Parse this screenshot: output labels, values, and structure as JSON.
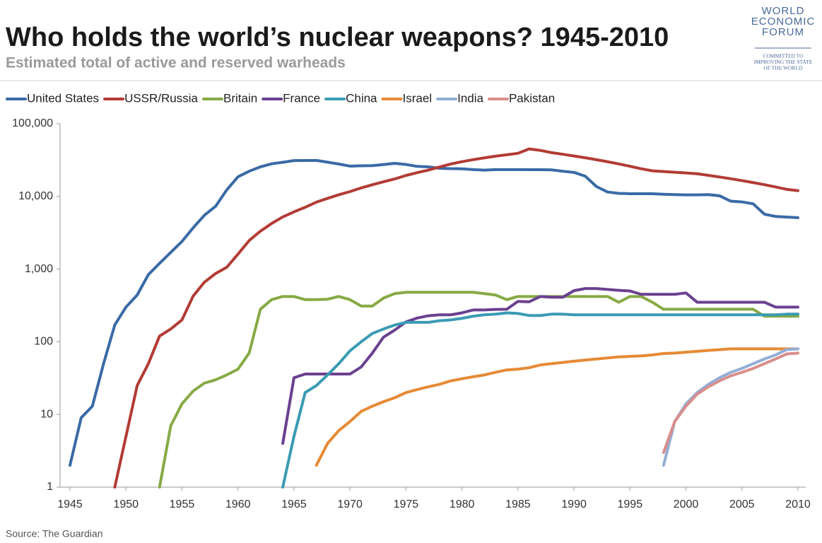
{
  "chart_data": {
    "type": "line",
    "title": "Who holds the world’s nuclear weapons? 1945-2010",
    "subtitle": "Estimated total of active and reserved warheads",
    "source": "Source: The Guardian",
    "logo": {
      "lines": [
        "WORLD",
        "ECONOMIC",
        "FORUM"
      ],
      "tagline": [
        "COMMITTED TO",
        "IMPROVING THE STATE",
        "OF THE WORLD"
      ]
    },
    "log_scale": true,
    "grid": false,
    "legend": "top",
    "xlim": [
      1945,
      2010
    ],
    "xticks": [
      1945,
      1950,
      1955,
      1960,
      1965,
      1970,
      1975,
      1980,
      1985,
      1990,
      1995,
      2000,
      2005,
      2010
    ],
    "ylim": [
      1,
      100000
    ],
    "yticks": [
      1,
      10,
      100,
      {
        "value": 1000,
        "label": "1,000"
      },
      {
        "value": 10000,
        "label": "10,000"
      },
      {
        "value": 100000,
        "label": "100,000"
      }
    ],
    "x": [
      1945,
      1946,
      1947,
      1948,
      1949,
      1950,
      1951,
      1952,
      1953,
      1954,
      1955,
      1956,
      1957,
      1958,
      1959,
      1960,
      1961,
      1962,
      1963,
      1964,
      1965,
      1966,
      1967,
      1968,
      1969,
      1970,
      1971,
      1972,
      1973,
      1974,
      1975,
      1976,
      1977,
      1978,
      1979,
      1980,
      1981,
      1982,
      1983,
      1984,
      1985,
      1986,
      1987,
      1988,
      1989,
      1990,
      1991,
      1992,
      1993,
      1994,
      1995,
      1996,
      1997,
      1998,
      1999,
      2000,
      2001,
      2002,
      2003,
      2004,
      2005,
      2006,
      2007,
      2008,
      2009,
      2010
    ],
    "series": [
      {
        "name": "United States",
        "color": "#3a6aa6",
        "values": [
          2,
          9,
          13,
          50,
          170,
          300,
          440,
          840,
          1200,
          1700,
          2400,
          3700,
          5500,
          7300,
          12300,
          18600,
          22200,
          25500,
          28100,
          29500,
          31100,
          31200,
          31300,
          29600,
          27900,
          26100,
          26400,
          26500,
          27400,
          28500,
          27500,
          25900,
          25500,
          24400,
          24100,
          24000,
          23400,
          23000,
          23400,
          23400,
          23400,
          23300,
          23300,
          23200,
          22200,
          21400,
          19000,
          13700,
          11500,
          11000,
          10900,
          10900,
          10900,
          10700,
          10600,
          10500,
          10500,
          10600,
          10200,
          8600,
          8400,
          7900,
          5700,
          5300,
          5200,
          5100
        ]
      },
      {
        "name": "USSR/Russia",
        "color": "#b33b35",
        "values": [
          null,
          null,
          null,
          null,
          1,
          5,
          25,
          50,
          120,
          150,
          200,
          426,
          660,
          869,
          1060,
          1605,
          2471,
          3322,
          4238,
          5221,
          6129,
          7089,
          8339,
          9399,
          10538,
          11643,
          13092,
          14478,
          15915,
          17385,
          19443,
          21205,
          23044,
          25393,
          27935,
          30062,
          32049,
          33952,
          35804,
          37431,
          39197,
          45000,
          43000,
          40000,
          38000,
          36000,
          34000,
          32000,
          30000,
          28000,
          26000,
          24000,
          22500,
          22000,
          21500,
          21000,
          20500,
          19500,
          18500,
          17500,
          16500,
          15500,
          14500,
          13500,
          12500,
          12000
        ]
      },
      {
        "name": "Britain",
        "color": "#86aa45",
        "values": [
          null,
          null,
          null,
          null,
          null,
          null,
          null,
          null,
          1,
          7,
          14,
          21,
          27,
          30,
          35,
          42,
          70,
          280,
          380,
          420,
          420,
          380,
          380,
          385,
          420,
          380,
          310,
          310,
          400,
          460,
          480,
          480,
          480,
          480,
          480,
          480,
          480,
          460,
          440,
          380,
          420,
          420,
          420,
          420,
          420,
          420,
          420,
          420,
          420,
          350,
          420,
          420,
          350,
          280,
          280,
          280,
          280,
          280,
          280,
          280,
          280,
          280,
          225,
          225,
          225,
          225
        ]
      },
      {
        "name": "France",
        "color": "#6a4190",
        "values": [
          null,
          null,
          null,
          null,
          null,
          null,
          null,
          null,
          null,
          null,
          null,
          null,
          null,
          null,
          null,
          null,
          null,
          null,
          null,
          4,
          32,
          36,
          36,
          36,
          36,
          36,
          45,
          70,
          116,
          145,
          188,
          212,
          228,
          235,
          235,
          250,
          274,
          274,
          279,
          280,
          360,
          355,
          420,
          410,
          410,
          505,
          540,
          540,
          525,
          510,
          500,
          450,
          450,
          450,
          450,
          470,
          350,
          350,
          350,
          350,
          350,
          350,
          350,
          300,
          300,
          300
        ]
      },
      {
        "name": "China",
        "color": "#3a9bb3",
        "values": [
          null,
          null,
          null,
          null,
          null,
          null,
          null,
          null,
          null,
          null,
          null,
          null,
          null,
          null,
          null,
          null,
          null,
          null,
          null,
          1,
          5,
          20,
          25,
          35,
          50,
          75,
          100,
          130,
          150,
          170,
          185,
          185,
          185,
          195,
          200,
          210,
          225,
          235,
          240,
          250,
          245,
          230,
          230,
          240,
          240,
          235,
          235,
          235,
          235,
          235,
          235,
          235,
          235,
          235,
          235,
          235,
          235,
          235,
          235,
          235,
          235,
          235,
          235,
          235,
          240,
          240
        ]
      },
      {
        "name": "Israel",
        "color": "#e68a35",
        "values": [
          null,
          null,
          null,
          null,
          null,
          null,
          null,
          null,
          null,
          null,
          null,
          null,
          null,
          null,
          null,
          null,
          null,
          null,
          null,
          null,
          null,
          null,
          2,
          4,
          6,
          8,
          11,
          13,
          15,
          17,
          20,
          22,
          24,
          26,
          29,
          31,
          33,
          35,
          38,
          41,
          42,
          44,
          48,
          50,
          52,
          54,
          56,
          58,
          60,
          62,
          63,
          64,
          66,
          69,
          70,
          72,
          74,
          76,
          78,
          80,
          80,
          80,
          80,
          80,
          80,
          80
        ]
      },
      {
        "name": "India",
        "color": "#93aed6",
        "values": [
          null,
          null,
          null,
          null,
          null,
          null,
          null,
          null,
          null,
          null,
          null,
          null,
          null,
          null,
          null,
          null,
          null,
          null,
          null,
          null,
          null,
          null,
          null,
          null,
          null,
          null,
          null,
          null,
          null,
          null,
          null,
          null,
          null,
          null,
          null,
          null,
          null,
          null,
          null,
          null,
          null,
          null,
          null,
          null,
          null,
          null,
          null,
          null,
          null,
          null,
          null,
          null,
          null,
          2,
          8,
          14,
          20,
          26,
          32,
          38,
          43,
          50,
          58,
          66,
          78,
          80
        ]
      },
      {
        "name": "Pakistan",
        "color": "#d98e8c",
        "values": [
          null,
          null,
          null,
          null,
          null,
          null,
          null,
          null,
          null,
          null,
          null,
          null,
          null,
          null,
          null,
          null,
          null,
          null,
          null,
          null,
          null,
          null,
          null,
          null,
          null,
          null,
          null,
          null,
          null,
          null,
          null,
          null,
          null,
          null,
          null,
          null,
          null,
          null,
          null,
          null,
          null,
          null,
          null,
          null,
          null,
          null,
          null,
          null,
          null,
          null,
          null,
          null,
          null,
          3,
          8,
          13,
          19,
          24,
          29,
          34,
          38,
          43,
          50,
          58,
          68,
          70
        ]
      }
    ]
  }
}
